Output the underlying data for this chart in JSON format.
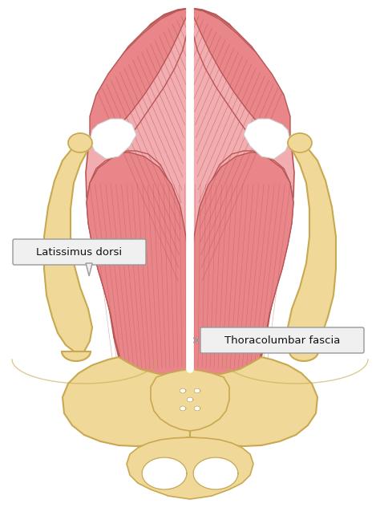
{
  "background_color": "#ffffff",
  "muscle_fill": "#e8868a",
  "muscle_fill_light": "#f2adb0",
  "muscle_fill_mid": "#e8868a",
  "muscle_fill_dark": "#c96060",
  "muscle_edge": "#b85555",
  "muscle_line": "#b85555",
  "bone_fill": "#f0d898",
  "bone_fill_shadow": "#e0c070",
  "bone_edge": "#c8a850",
  "spine_color": "#ffffff",
  "label1_text": "Latissimus dorsi",
  "label2_text": "Thoracolumbar fascia",
  "label_bg": "#f0f0f0",
  "label_border": "#999999",
  "figsize": [
    4.74,
    6.53
  ],
  "dpi": 100
}
